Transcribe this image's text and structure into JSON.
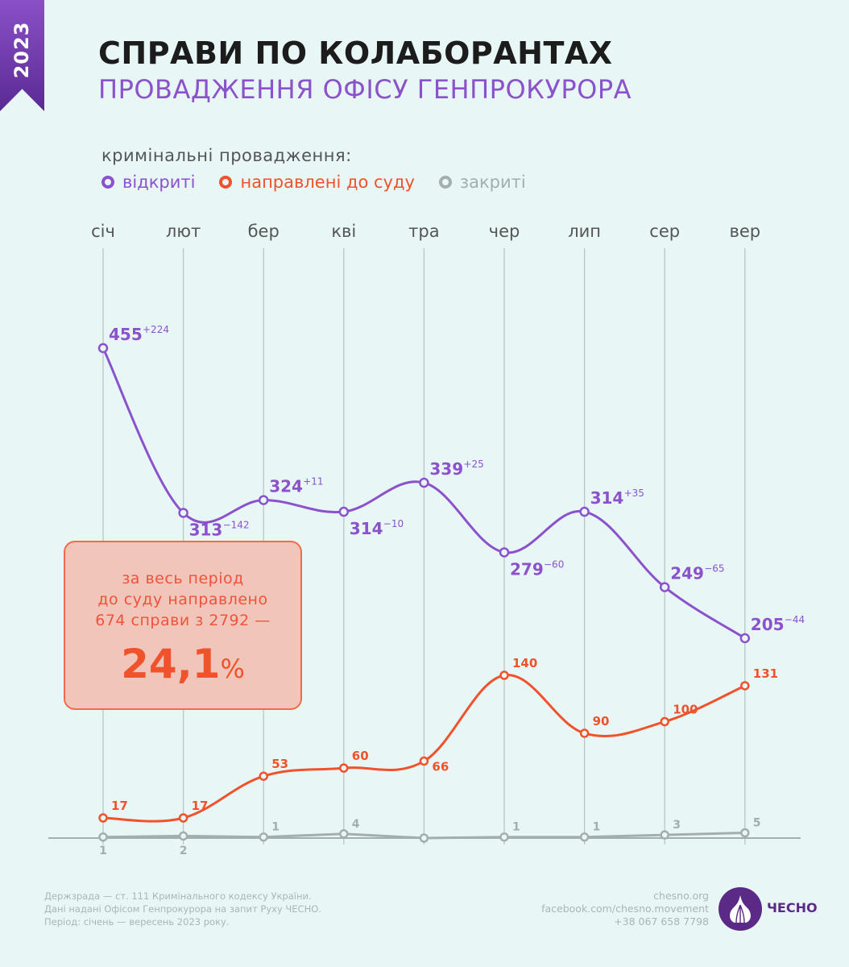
{
  "badge": {
    "year": "2023"
  },
  "header": {
    "title": "СПРАВИ ПО КОЛАБОРАНТАХ",
    "subtitle": "ПРОВАДЖЕННЯ ОФІСУ ГЕНПРОКУРОРА"
  },
  "legend": {
    "title": "кримінальні провадження:",
    "items": [
      {
        "label": "відкриті",
        "color": "#8b52cc"
      },
      {
        "label": "направлені до суду",
        "color": "#f0522b"
      },
      {
        "label": "закриті",
        "color": "#a3aead"
      }
    ]
  },
  "callout": {
    "line1": "за весь період",
    "line2": "до суду направлено",
    "line3": "674 справи з 2792 —",
    "value": "24,1",
    "unit": "%"
  },
  "chart_data": {
    "type": "line",
    "title": "СПРАВИ ПО КОЛАБОРАНТАХ",
    "subtitle": "ПРОВАДЖЕННЯ ОФІСУ ГЕНПРОКУРОРА",
    "categories": [
      "січ",
      "лют",
      "бер",
      "кві",
      "тра",
      "чер",
      "лип",
      "сер",
      "вер"
    ],
    "xlabel": "",
    "ylabel": "",
    "ylim": [
      0,
      470
    ],
    "grid": "vertical",
    "legend_position": "top-left",
    "series": [
      {
        "name": "відкриті",
        "color": "#8b52cc",
        "values": [
          455,
          313,
          324,
          314,
          339,
          279,
          314,
          249,
          205
        ],
        "deltas": [
          "+224",
          "−142",
          "+11",
          "−10",
          "+25",
          "−60",
          "+35",
          "−65",
          "−44"
        ]
      },
      {
        "name": "направлені до суду",
        "color": "#f0522b",
        "values": [
          17,
          17,
          53,
          60,
          66,
          140,
          90,
          100,
          131
        ]
      },
      {
        "name": "закриті",
        "color": "#a3aead",
        "values": [
          1,
          2,
          1,
          4,
          0,
          1,
          1,
          3,
          5
        ],
        "labels": [
          "1",
          "2",
          "1",
          "4",
          "",
          "1",
          "1",
          "3",
          "5"
        ]
      }
    ]
  },
  "footer": {
    "notes": [
      "Держзрада — ст. 111 Кримінального кодексу України.",
      "Дані надані Офісом Генпрокурора на запит Руху ЧЕСНО.",
      "Період: січень — вересень 2023 року."
    ],
    "contacts": [
      "chesno.org",
      "facebook.com/chesno.movement",
      "+38 067 658 7798"
    ],
    "logo_text": "ЧЕСНО",
    "logo_icon": "garlic-icon"
  }
}
